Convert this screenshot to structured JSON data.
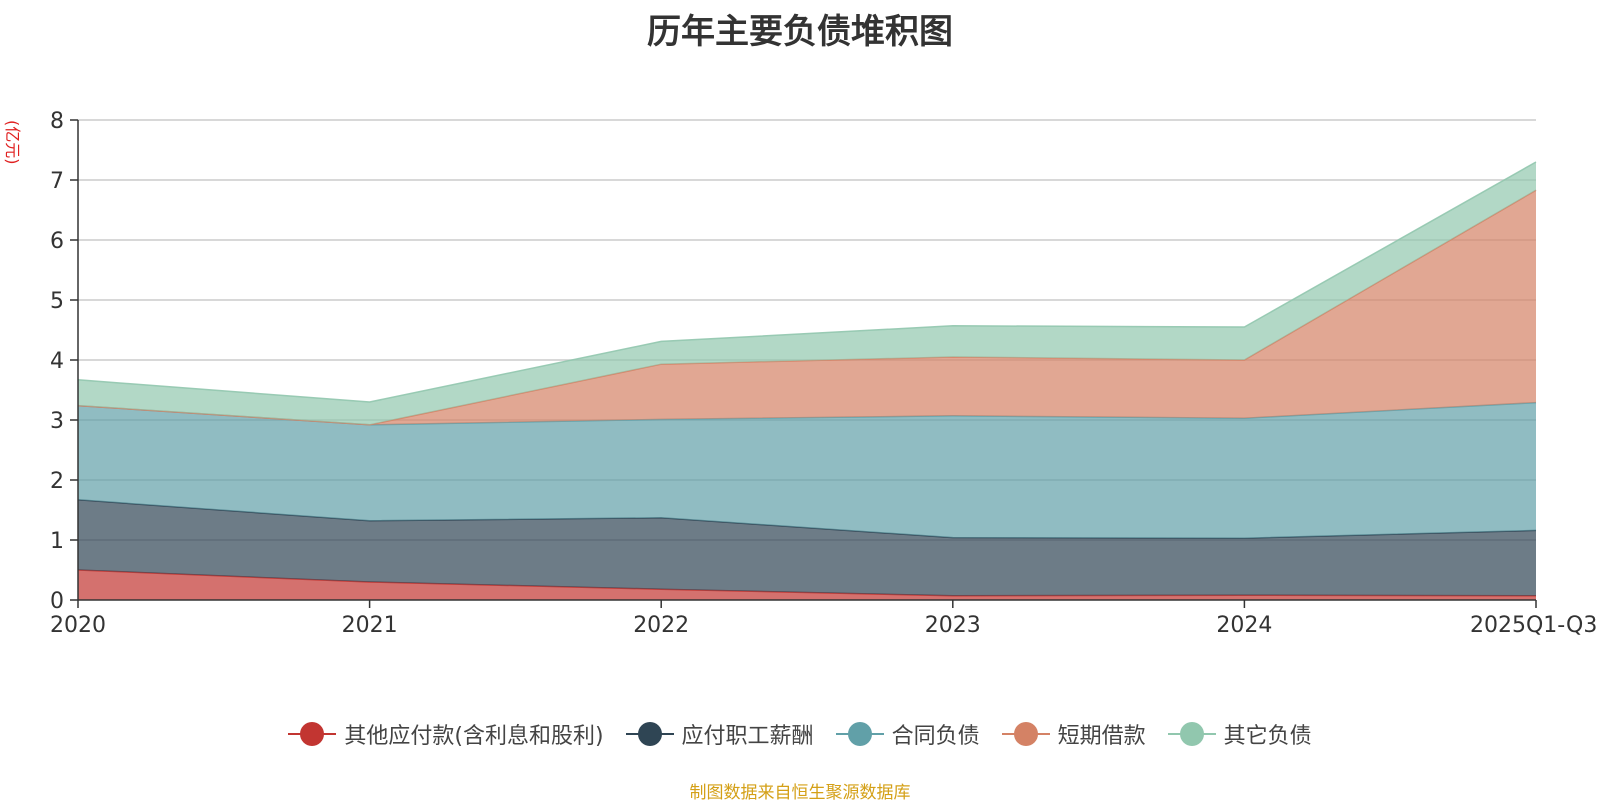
{
  "chart_data": {
    "type": "area",
    "stacked": true,
    "title": "历年主要负债堆积图",
    "y_unit": "(亿元)",
    "categories": [
      "2020",
      "2021",
      "2022",
      "2023",
      "2024",
      "2025Q1-Q3"
    ],
    "ylim": [
      0,
      8
    ],
    "yticks": [
      0,
      1,
      2,
      3,
      4,
      5,
      6,
      7,
      8
    ],
    "grid": true,
    "legend_position": "bottom",
    "series": [
      {
        "name": "其他应付款(含利息和股利)",
        "color": "#c23531",
        "values": [
          0.5,
          0.3,
          0.18,
          0.07,
          0.08,
          0.07
        ]
      },
      {
        "name": "应付职工薪酬",
        "color": "#2f4554",
        "values": [
          1.17,
          1.02,
          1.19,
          0.97,
          0.95,
          1.09
        ]
      },
      {
        "name": "合同负债",
        "color": "#61a0a8",
        "values": [
          1.57,
          1.6,
          1.64,
          2.03,
          2.0,
          2.13
        ]
      },
      {
        "name": "短期借款",
        "color": "#d48265",
        "values": [
          0.0,
          0.0,
          0.92,
          0.98,
          0.97,
          3.54
        ]
      },
      {
        "name": "其它负债",
        "color": "#91c7ae",
        "values": [
          0.43,
          0.38,
          0.38,
          0.52,
          0.55,
          0.47
        ]
      }
    ],
    "source": "制图数据来自恒生聚源数据库"
  }
}
